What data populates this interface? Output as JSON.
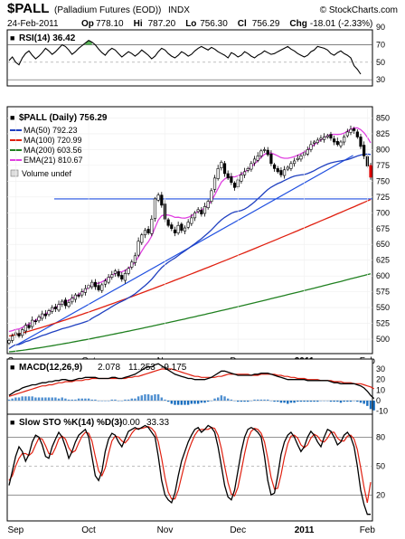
{
  "header": {
    "symbol": "$PALL",
    "name": "(Palladium Futures (EOD))",
    "exchange": "INDX",
    "copyright": "© StockCharts.com",
    "date": "24-Feb-2011",
    "ohlc": [
      {
        "label": "Op",
        "value": "778.10"
      },
      {
        "label": "Hi",
        "value": "787.20"
      },
      {
        "label": "Lo",
        "value": "756.30"
      },
      {
        "label": "Cl",
        "value": "756.29"
      },
      {
        "label": "Chg",
        "value": "-18.01 (-2.33%)"
      }
    ]
  },
  "colors": {
    "candle_up": "#ffffff",
    "candle_down": "#000000",
    "ma50": "#2040c0",
    "ma100": "#e02010",
    "ma200": "#208020",
    "ema21": "#e040e0",
    "trendline": "#2050e0",
    "macd_hist_pos": "#4f8fd0",
    "macd_hist_neg": "#1a6fc0",
    "rsi_fill": "#30a030",
    "down_arrow": "#e00000"
  },
  "chart_data": [
    {
      "type": "line",
      "name": "RSI",
      "legend": "RSI(14) 36.42",
      "ylim": [
        25,
        85
      ],
      "yticks": [
        "90",
        "70",
        "50",
        "30"
      ],
      "reference_lines": [
        70,
        30
      ],
      "values": [
        52,
        56,
        50,
        47,
        55,
        60,
        63,
        58,
        54,
        57,
        61,
        66,
        63,
        59,
        62,
        66,
        70,
        68,
        64,
        59,
        62,
        66,
        69,
        72,
        75,
        73,
        70,
        65,
        61,
        58,
        63,
        66,
        64,
        60,
        56,
        59,
        62,
        60,
        57,
        60,
        64,
        61,
        58,
        54,
        57,
        62,
        66,
        64,
        60,
        57,
        55,
        58,
        62,
        60,
        57,
        59,
        63,
        66,
        68,
        66,
        64,
        67,
        65,
        62,
        60,
        58,
        55,
        61,
        59,
        56,
        58,
        62,
        60,
        57,
        55,
        58,
        60,
        63,
        61,
        59,
        60,
        62,
        64,
        66,
        68,
        65,
        63,
        60,
        58,
        56,
        58,
        62,
        64,
        68,
        67,
        66,
        64,
        60,
        58,
        61,
        63,
        60,
        58,
        55,
        46,
        42,
        36.42
      ]
    },
    {
      "type": "candlestick",
      "name": "$PALL (Daily)",
      "legend_title": "$PALL (Daily) 756.29",
      "ylim": [
        480,
        865
      ],
      "yticks": [
        "850",
        "825",
        "800",
        "775",
        "750",
        "725",
        "700",
        "675",
        "650",
        "625",
        "600",
        "575",
        "550",
        "525",
        "500"
      ],
      "x_labels": [
        "Sep",
        "Oct",
        "Nov",
        "Dec",
        "2011",
        "Feb"
      ],
      "x_label_index": [
        2,
        24,
        47,
        69,
        89,
        108
      ],
      "closes": [
        498,
        505,
        510,
        505,
        515,
        522,
        518,
        530,
        528,
        535,
        540,
        537,
        545,
        550,
        548,
        555,
        560,
        553,
        558,
        565,
        570,
        568,
        575,
        580,
        585,
        590,
        583,
        578,
        586,
        592,
        598,
        602,
        608,
        600,
        595,
        604,
        612,
        622,
        632,
        655,
        665,
        672,
        668,
        690,
        722,
        728,
        712,
        690,
        680,
        675,
        668,
        680,
        672,
        676,
        685,
        692,
        700,
        705,
        698,
        710,
        718,
        735,
        755,
        770,
        780,
        762,
        755,
        748,
        740,
        752,
        760,
        765,
        770,
        778,
        785,
        790,
        798,
        800,
        792,
        778,
        770,
        765,
        760,
        768,
        772,
        778,
        782,
        786,
        790,
        795,
        800,
        808,
        812,
        815,
        818,
        820,
        822,
        818,
        812,
        808,
        812,
        820,
        828,
        832,
        830,
        820,
        805,
        790,
        774,
        756.29
      ],
      "series": [
        {
          "name": "MA(50)",
          "legend": "MA(50) 792.23",
          "last": 792.23
        },
        {
          "name": "MA(100)",
          "legend": "MA(100) 720.99",
          "last": 720.99
        },
        {
          "name": "MA(200)",
          "legend": "MA(200) 603.56",
          "last": 603.56
        },
        {
          "name": "EMA(21)",
          "legend": "EMA(21) 810.67",
          "last": 810.67
        }
      ],
      "volume_legend": "Volume undef",
      "horizontal_line": 722,
      "trendline": [
        [
          2,
          490
        ],
        [
          122,
          832
        ]
      ]
    },
    {
      "type": "line",
      "name": "MACD",
      "legend_label": "MACD(12,26,9)",
      "legend_values": [
        "2.078",
        "11.253",
        "-9.175"
      ],
      "ylim": [
        -12,
        36
      ],
      "yticks": [
        "30",
        "20",
        "10",
        "0",
        "-10"
      ],
      "macd": [
        5,
        7,
        9,
        10,
        12,
        13,
        14,
        15,
        15,
        16,
        17,
        17,
        18,
        18,
        19,
        19,
        20,
        20,
        19,
        19,
        20,
        21,
        21,
        22,
        22,
        22,
        22,
        21,
        21,
        21,
        21,
        22,
        22,
        21,
        21,
        22,
        23,
        24,
        25,
        27,
        29,
        31,
        32,
        32,
        34,
        35,
        33,
        31,
        29,
        27,
        25,
        24,
        23,
        22,
        21,
        21,
        20,
        20,
        20,
        20,
        21,
        22,
        24,
        26,
        28,
        28,
        27,
        26,
        25,
        24,
        24,
        24,
        24,
        24,
        25,
        25,
        26,
        26,
        26,
        25,
        24,
        23,
        22,
        21,
        20,
        20,
        20,
        20,
        20,
        20,
        19,
        19,
        19,
        19,
        19,
        19,
        19,
        18,
        17,
        17,
        16,
        16,
        16,
        16,
        16,
        15,
        14,
        12,
        9,
        5,
        2.078
      ],
      "signal": [
        4,
        5,
        6,
        7,
        8,
        9,
        10,
        11,
        12,
        13,
        14,
        14,
        15,
        15,
        16,
        17,
        17,
        18,
        18,
        18,
        19,
        19,
        19,
        20,
        20,
        21,
        21,
        21,
        21,
        21,
        21,
        21,
        21,
        21,
        21,
        21,
        22,
        22,
        23,
        23,
        24,
        25,
        26,
        27,
        28,
        29,
        30,
        30,
        30,
        30,
        29,
        28,
        27,
        26,
        25,
        24,
        23,
        23,
        22,
        22,
        22,
        22,
        22,
        23,
        23,
        24,
        25,
        25,
        25,
        25,
        25,
        25,
        25,
        24,
        24,
        24,
        25,
        25,
        25,
        25,
        25,
        24,
        24,
        23,
        23,
        22,
        22,
        21,
        21,
        21,
        20,
        20,
        20,
        20,
        19,
        19,
        19,
        19,
        18,
        18,
        18,
        17,
        17,
        17,
        16,
        16,
        16,
        15,
        14,
        13,
        11.253
      ],
      "histogram": [
        1,
        2,
        3,
        3,
        4,
        4,
        4,
        4,
        3,
        3,
        3,
        3,
        3,
        3,
        3,
        2,
        3,
        2,
        1,
        1,
        1,
        2,
        2,
        2,
        2,
        1,
        1,
        0,
        0,
        0,
        0,
        1,
        1,
        0,
        0,
        1,
        1,
        2,
        2,
        4,
        5,
        6,
        6,
        5,
        6,
        6,
        3,
        1,
        -1,
        -3,
        -4,
        -4,
        -4,
        -4,
        -4,
        -3,
        -3,
        -3,
        -2,
        -2,
        -1,
        0,
        2,
        3,
        5,
        4,
        2,
        1,
        0,
        -1,
        -1,
        -1,
        -1,
        0,
        1,
        1,
        1,
        1,
        1,
        0,
        -1,
        -1,
        -2,
        -2,
        -3,
        -2,
        -2,
        -1,
        -1,
        -1,
        -1,
        -1,
        -1,
        -1,
        0,
        0,
        0,
        -1,
        -1,
        -1,
        -2,
        -1,
        -1,
        -1,
        0,
        -1,
        -2,
        -3,
        -5,
        -8,
        -9.175
      ]
    },
    {
      "type": "line",
      "name": "Slow STO",
      "legend_label": "Slow STO %K(14) %D(3)",
      "legend_values": [
        "-0.00",
        "33.33"
      ],
      "ylim": [
        -5,
        100
      ],
      "yticks": [
        "80",
        "50",
        "20"
      ],
      "reference_lines": [
        80,
        20
      ],
      "k": [
        30,
        45,
        60,
        70,
        65,
        55,
        62,
        75,
        82,
        80,
        72,
        60,
        58,
        70,
        78,
        85,
        80,
        70,
        58,
        65,
        75,
        82,
        85,
        88,
        80,
        60,
        40,
        35,
        45,
        65,
        78,
        84,
        82,
        75,
        70,
        78,
        86,
        88,
        90,
        88,
        90,
        92,
        90,
        85,
        80,
        60,
        35,
        20,
        15,
        12,
        22,
        40,
        55,
        65,
        75,
        82,
        88,
        90,
        85,
        88,
        92,
        90,
        85,
        70,
        50,
        30,
        18,
        15,
        25,
        45,
        65,
        80,
        88,
        90,
        88,
        85,
        80,
        60,
        35,
        20,
        22,
        40,
        62,
        75,
        82,
        85,
        80,
        72,
        65,
        70,
        80,
        86,
        82,
        75,
        70,
        80,
        88,
        86,
        80,
        72,
        75,
        82,
        85,
        80,
        70,
        50,
        25,
        10,
        0,
        -0.0
      ],
      "d": [
        35,
        40,
        50,
        58,
        63,
        63,
        61,
        64,
        72,
        79,
        78,
        71,
        63,
        62,
        69,
        78,
        81,
        78,
        69,
        64,
        66,
        74,
        81,
        85,
        84,
        76,
        60,
        45,
        40,
        48,
        63,
        76,
        81,
        80,
        76,
        74,
        78,
        84,
        88,
        89,
        89,
        90,
        91,
        89,
        85,
        75,
        58,
        38,
        23,
        16,
        16,
        25,
        39,
        53,
        65,
        74,
        82,
        87,
        88,
        88,
        88,
        90,
        89,
        82,
        68,
        50,
        33,
        21,
        19,
        28,
        45,
        63,
        78,
        86,
        89,
        88,
        84,
        75,
        58,
        38,
        26,
        27,
        41,
        59,
        73,
        81,
        82,
        79,
        72,
        69,
        72,
        79,
        83,
        81,
        76,
        75,
        79,
        85,
        85,
        79,
        76,
        76,
        81,
        82,
        78,
        67,
        48,
        28,
        12,
        33.33
      ]
    }
  ]
}
